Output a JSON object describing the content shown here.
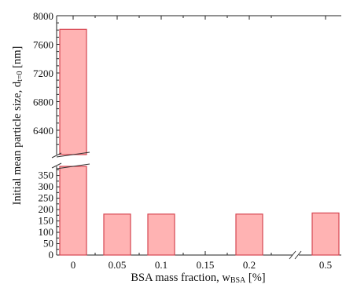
{
  "chart_data": {
    "type": "bar",
    "categories": [
      "0",
      "0.05",
      "0.1",
      "0.15",
      "0.2",
      "0.5"
    ],
    "values": [
      7810,
      180,
      180,
      null,
      180,
      185
    ],
    "xlabel": {
      "main": "BSA mass fraction, w",
      "sub": "BSA",
      "unit": " [%]"
    },
    "ylabel": {
      "main": "Initial mean particle size, d",
      "sub": "t=0",
      "unit": " [nm]"
    },
    "y_upper_ticks": [
      "6400",
      "6800",
      "7200",
      "7600",
      "8000"
    ],
    "y_lower_ticks": [
      "0",
      "50",
      "100",
      "150",
      "200",
      "250",
      "300",
      "350"
    ],
    "ylim_upper": [
      6060,
      8000
    ],
    "ylim_lower": [
      0,
      390
    ],
    "x_axis_break": "between 0.2 and 0.5",
    "y_axis_break": "between 390 and 6060",
    "bar_fill": "#ffb3b3",
    "bar_edge": "#d64550",
    "grid": false
  }
}
